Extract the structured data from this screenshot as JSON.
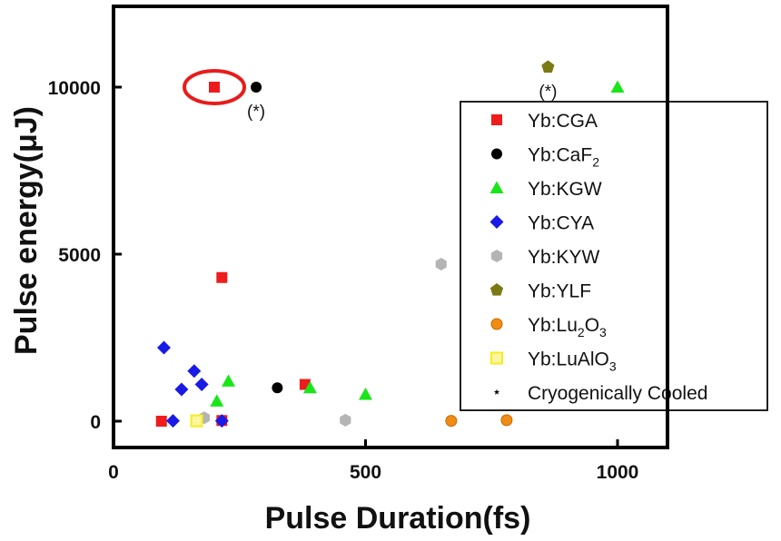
{
  "chart_data": {
    "type": "scatter",
    "title": "",
    "xlabel": "Pulse Duration(fs)",
    "ylabel": "Pulse energy(μJ)",
    "xlim": [
      0,
      1100
    ],
    "ylim": [
      -800,
      12500
    ],
    "xticks": [
      0,
      500,
      1000
    ],
    "yticks": [
      0,
      5000,
      10000
    ],
    "series": [
      {
        "name": "Yb:CGA",
        "marker": "square",
        "color": "#ee1c1c",
        "points": [
          [
            95,
            0
          ],
          [
            200,
            10000
          ],
          [
            215,
            4300
          ],
          [
            215,
            20
          ],
          [
            380,
            1100
          ]
        ]
      },
      {
        "name": "Yb:CaF2",
        "label_base": "Yb:CaF",
        "label_sub": "2",
        "marker": "circle",
        "color": "#000000",
        "points": [
          [
            283,
            10000
          ],
          [
            325,
            1000
          ]
        ]
      },
      {
        "name": "Yb:KGW",
        "marker": "triangle",
        "color": "#19e619",
        "points": [
          [
            205,
            600
          ],
          [
            228,
            1200
          ],
          [
            390,
            1000
          ],
          [
            500,
            800
          ],
          [
            1000,
            10000
          ]
        ]
      },
      {
        "name": "Yb:CYA",
        "marker": "diamond",
        "color": "#1a1ae6",
        "points": [
          [
            100,
            2200
          ],
          [
            118,
            10
          ],
          [
            135,
            950
          ],
          [
            160,
            1500
          ],
          [
            175,
            1100
          ],
          [
            215,
            10
          ]
        ]
      },
      {
        "name": "Yb:KYW",
        "marker": "hexagon",
        "color": "#b4b4b4",
        "points": [
          [
            180,
            100
          ],
          [
            460,
            30
          ],
          [
            650,
            4700
          ]
        ]
      },
      {
        "name": "Yb:YLF",
        "marker": "pentagon",
        "color": "#7a7a14",
        "points": [
          [
            862,
            10600
          ]
        ]
      },
      {
        "name": "Yb:Lu2O3",
        "label_base": "Yb:Lu",
        "label_sub": "2",
        "label_mid": "O",
        "label_sub2": "3",
        "marker": "sphere",
        "color": "#f08c14",
        "points": [
          [
            670,
            10
          ],
          [
            780,
            30
          ]
        ]
      },
      {
        "name": "Yb:LuAlO3",
        "label_base": "Yb:LuAlO",
        "label_sub": "3",
        "marker": "square-hollow",
        "color": "#f5ee1e",
        "points": [
          [
            165,
            10
          ]
        ]
      },
      {
        "name": "Cryogenically Cooled",
        "marker": "star",
        "color": "#000000",
        "points": []
      }
    ],
    "annotations": [
      {
        "text": "(*)",
        "x": 283,
        "y": 10000
      },
      {
        "text": "(*)",
        "x": 862,
        "y": 10600
      }
    ],
    "highlight": {
      "shape": "ellipse",
      "color": "#e81c1c",
      "x": 200,
      "y": 10000
    },
    "legend": "right"
  }
}
